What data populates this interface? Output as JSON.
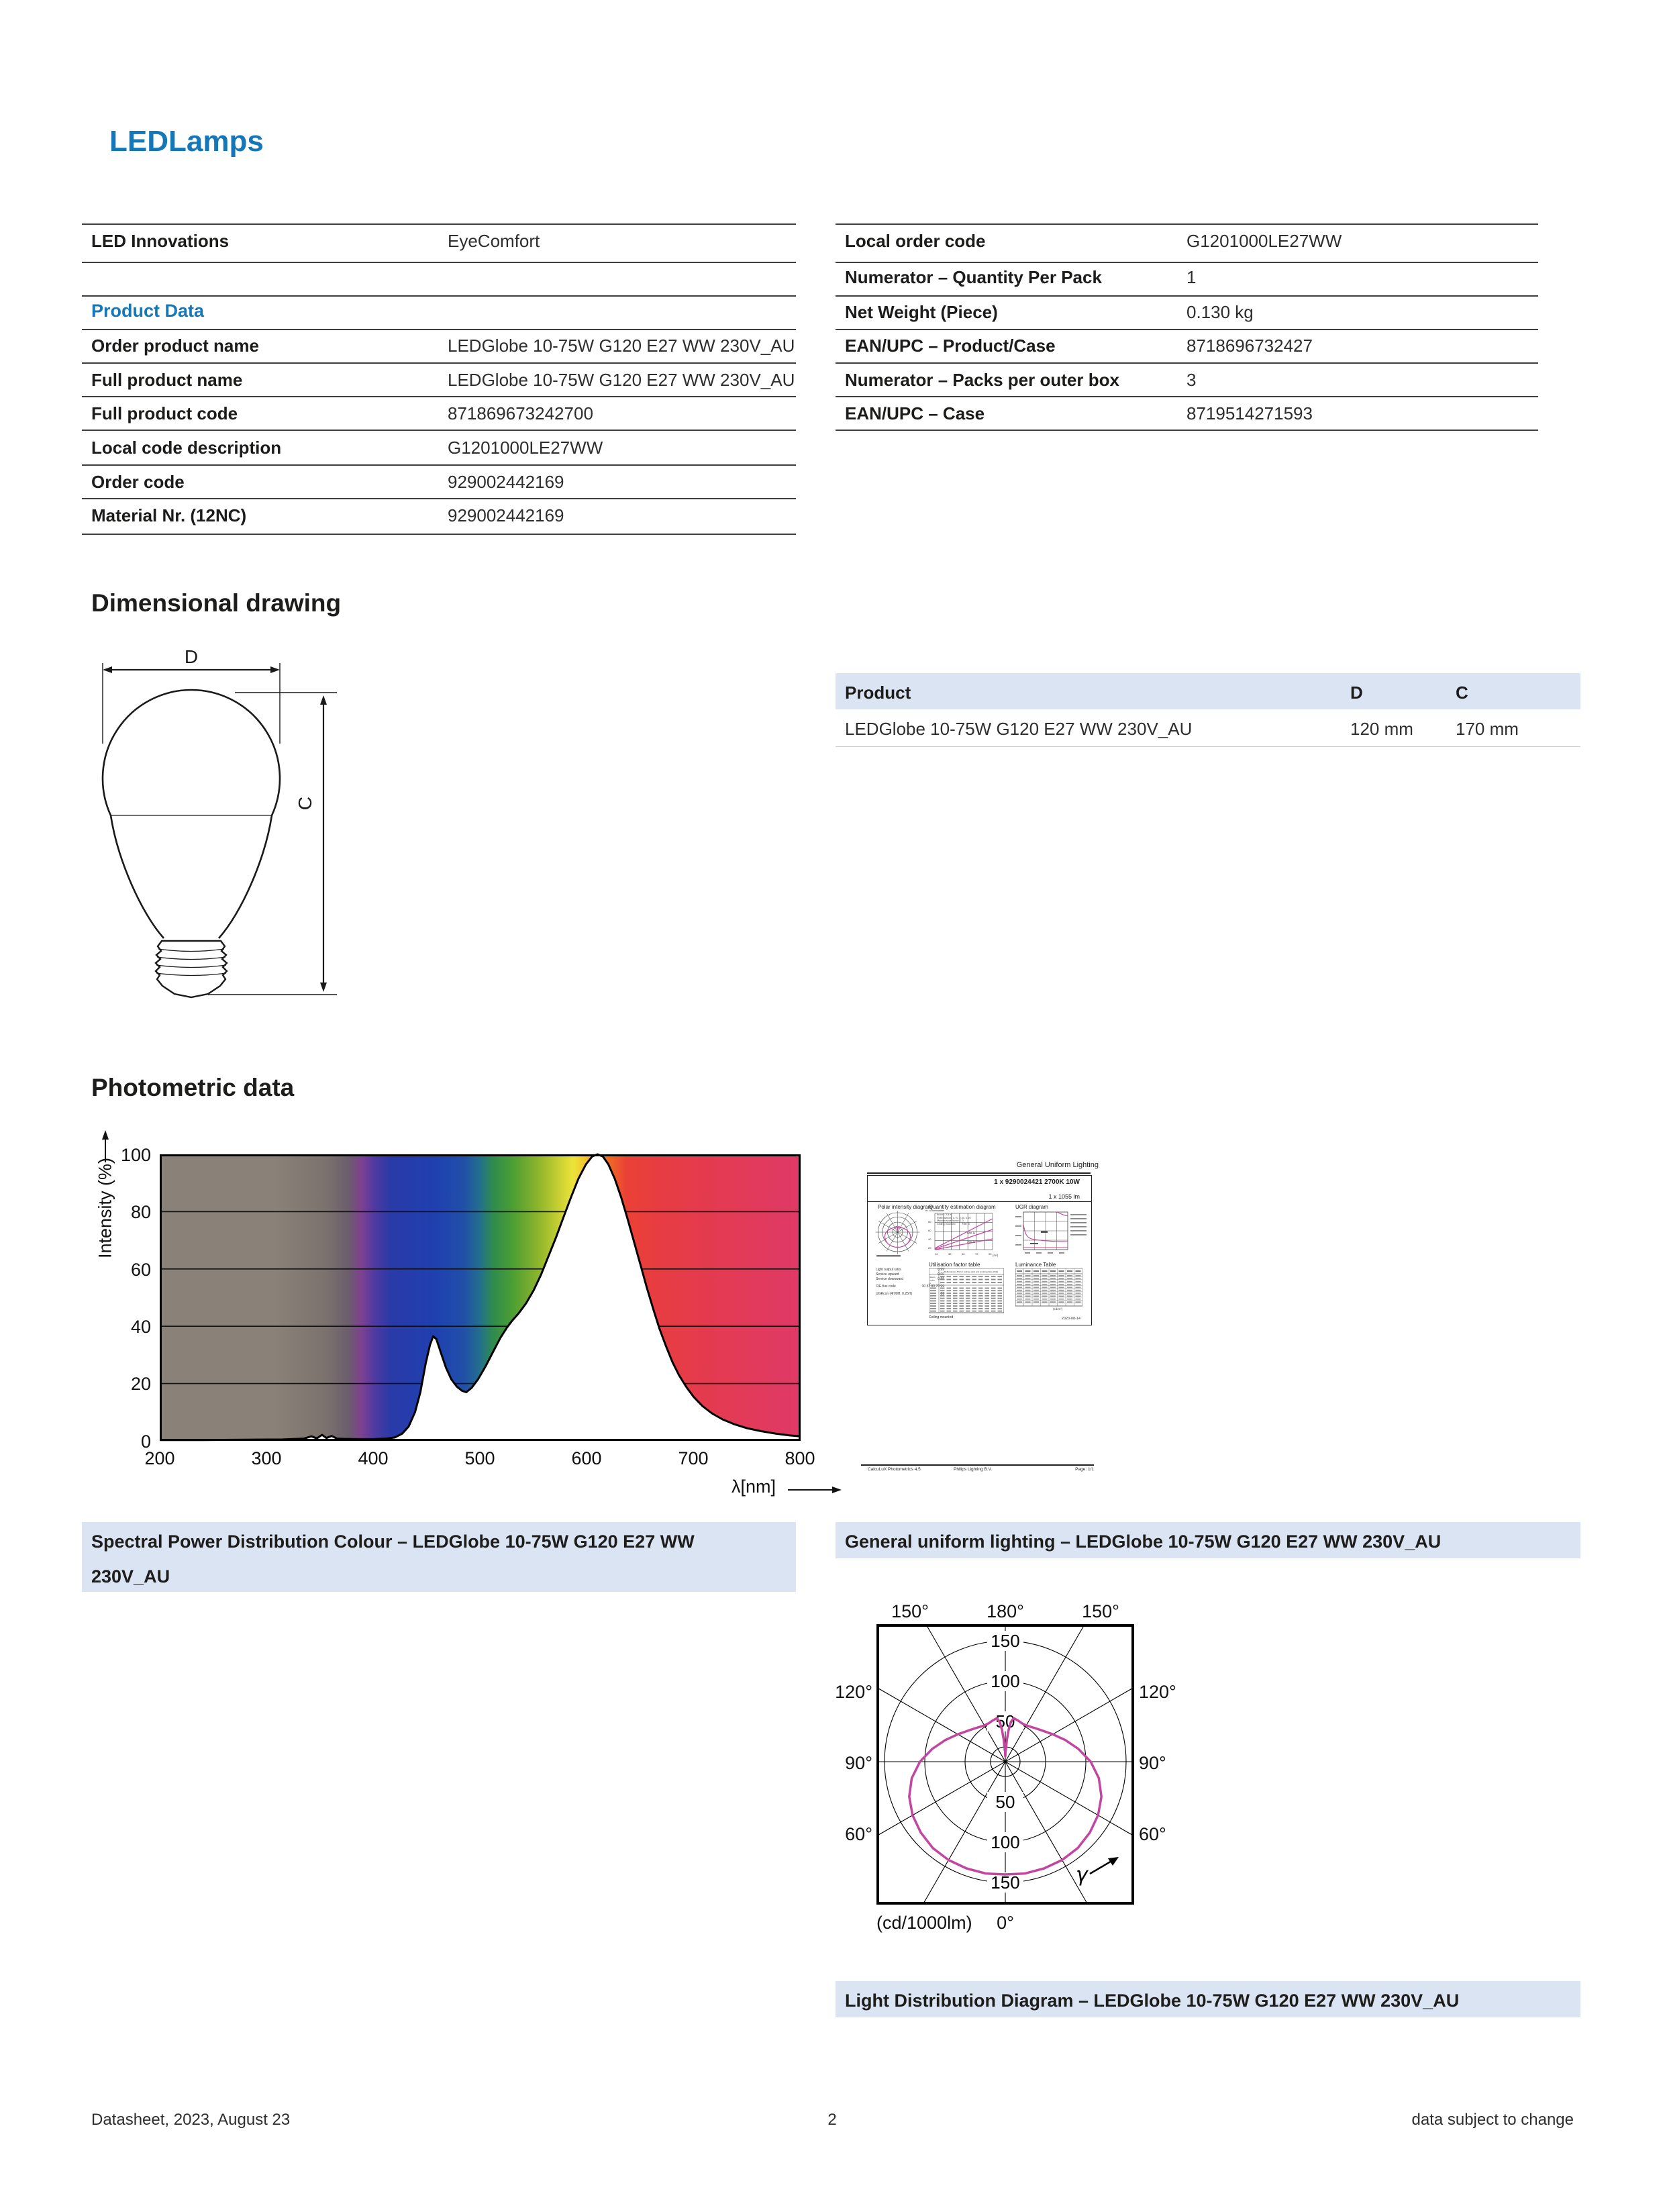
{
  "page": {
    "header_title": "LEDLamps",
    "footer_left": "Datasheet, 2023, August 23",
    "footer_page": "2",
    "footer_right": "data subject to change"
  },
  "colors": {
    "brand_blue": "#1577b8",
    "caption_bg": "#dbe4f2",
    "table_line": "#3d3d3d",
    "polar_curve": "#c2459f"
  },
  "info_left": {
    "section_heading": "Product Data",
    "rows": [
      {
        "label": "LED Innovations",
        "value": "EyeComfort"
      },
      {
        "label": "Order product name",
        "value": "LEDGlobe 10-75W G120 E27 WW 230V_AU"
      },
      {
        "label": "Full product name",
        "value": "LEDGlobe 10-75W G120 E27 WW 230V_AU"
      },
      {
        "label": "Full product code",
        "value": "871869673242700"
      },
      {
        "label": "Local code description",
        "value": "G1201000LE27WW"
      },
      {
        "label": "Order code",
        "value": "929002442169"
      },
      {
        "label": "Material Nr. (12NC)",
        "value": "929002442169"
      }
    ]
  },
  "info_right": {
    "rows": [
      {
        "label": "Local order code",
        "value": "G1201000LE27WW"
      },
      {
        "label": "Numerator – Quantity Per Pack",
        "value": "1"
      },
      {
        "label": "Net Weight (Piece)",
        "value": "0.130 kg"
      },
      {
        "label": "EAN/UPC – Product/Case",
        "value": "8718696732427"
      },
      {
        "label": "Numerator – Packs per outer box",
        "value": "3"
      },
      {
        "label": "EAN/UPC – Case",
        "value": "8719514271593"
      }
    ]
  },
  "dimensional": {
    "heading": "Dimensional drawing",
    "dim_d": "D",
    "dim_c": "C",
    "table": {
      "headers": [
        "Product",
        "D",
        "C"
      ],
      "row": [
        "LEDGlobe 10-75W G120 E27 WW 230V_AU",
        "120 mm",
        "170 mm"
      ]
    }
  },
  "photometric": {
    "heading": "Photometric data",
    "spd_caption_line1": "Spectral Power Distribution Colour – LEDGlobe 10-75W G120 E27 WW",
    "spd_caption_line2": "230V_AU",
    "gul_caption": "General uniform lighting – LEDGlobe 10-75W G120 E27 WW 230V_AU",
    "ldd_caption": "Light Distribution Diagram – LEDGlobe 10-75W G120 E27 WW 230V_AU"
  },
  "thumbnail": {
    "title": "General Uniform Lighting",
    "header": "1 x 9290024421 2700K 10W",
    "lumen": "1 x 1055 lm",
    "sections": {
      "polar": "Polar intensity diagram",
      "quantity": "Quantity estimation diagram",
      "ugr": "UGR diagram",
      "utilisation": "Utilisation factor table",
      "luminance": "Luminance Table"
    },
    "quantity_ylabel": "nr. of luminaires",
    "quantity_xunit": "(m²)",
    "quantity_xticks": [
      "10",
      "30",
      "50",
      "70",
      "90"
    ],
    "quantity_labels": [
      "750 lx",
      "500 lx",
      "300 lx"
    ],
    "quantity_notes": [
      "hroom: 2.8 m",
      "Reflectances: 0.70, 0.50, 0.20",
      "Maintenance factor: 1.0",
      "Ceiling mounted"
    ],
    "stats": [
      [
        "Light output ratio",
        "0.99"
      ],
      [
        "Service upward",
        "0.00"
      ],
      [
        "Service downward",
        "0.99"
      ],
      [
        "CIE flux code",
        "30 57 80 70 99"
      ],
      [
        "UGRcon (4H/8H, 0.25H)",
        "21"
      ]
    ],
    "utilisation_header": "Reflectances (%) for ceiling, walls and working plane (CIE)",
    "utilisation_rowhead": "Room Index k",
    "utilisation_note": "Ceiling mounted",
    "luminance_unit": "(cd/m²)",
    "date": "2020-08-14",
    "footer": [
      "CalcuLuX Photometrics 4.5",
      "Philips Lighting B.V.",
      "Page: 1/1"
    ]
  },
  "chart_data": [
    {
      "id": "spd",
      "type": "area",
      "title": "Spectral Power Distribution Colour",
      "xlabel": "λ[nm]",
      "ylabel": "Intensity (%)",
      "xlim": [
        200,
        800
      ],
      "ylim": [
        0,
        100
      ],
      "xticks": [
        "200",
        "300",
        "400",
        "500",
        "600",
        "700",
        "800"
      ],
      "yticks": [
        "100",
        "80",
        "60",
        "40",
        "20",
        "0"
      ],
      "grid": true,
      "gradient_stops": [
        {
          "o": 0,
          "c": "#8a8178"
        },
        {
          "o": 0.18,
          "c": "#8a8178"
        },
        {
          "o": 0.26,
          "c": "#7b726d"
        },
        {
          "o": 0.295,
          "c": "#6b5d6d"
        },
        {
          "o": 0.315,
          "c": "#7d4191"
        },
        {
          "o": 0.335,
          "c": "#4f3aa1"
        },
        {
          "o": 0.36,
          "c": "#2a3aa8"
        },
        {
          "o": 0.43,
          "c": "#1f40b0"
        },
        {
          "o": 0.475,
          "c": "#2150a8"
        },
        {
          "o": 0.5,
          "c": "#23708c"
        },
        {
          "o": 0.52,
          "c": "#2f8b4e"
        },
        {
          "o": 0.55,
          "c": "#4b9e33"
        },
        {
          "o": 0.59,
          "c": "#8cb42c"
        },
        {
          "o": 0.625,
          "c": "#ccd133"
        },
        {
          "o": 0.645,
          "c": "#ece43a"
        },
        {
          "o": 0.663,
          "c": "#f2c62c"
        },
        {
          "o": 0.678,
          "c": "#f49b1e"
        },
        {
          "o": 0.7,
          "c": "#f16a22"
        },
        {
          "o": 0.728,
          "c": "#ea4136"
        },
        {
          "o": 0.78,
          "c": "#e73c42"
        },
        {
          "o": 0.87,
          "c": "#e43a52"
        },
        {
          "o": 1,
          "c": "#df3a67"
        }
      ],
      "points": [
        [
          200,
          0.3
        ],
        [
          240,
          0.3
        ],
        [
          280,
          0.4
        ],
        [
          315,
          0.5
        ],
        [
          335,
          0.8
        ],
        [
          342,
          1.6
        ],
        [
          347,
          0.9
        ],
        [
          352,
          2.1
        ],
        [
          356,
          1.0
        ],
        [
          361,
          1.7
        ],
        [
          366,
          0.8
        ],
        [
          372,
          0.7
        ],
        [
          385,
          0.6
        ],
        [
          400,
          0.6
        ],
        [
          412,
          0.8
        ],
        [
          420,
          1.2
        ],
        [
          427,
          2.5
        ],
        [
          433,
          5
        ],
        [
          439,
          10
        ],
        [
          444,
          17
        ],
        [
          449,
          27
        ],
        [
          453,
          33.5
        ],
        [
          456,
          36.5
        ],
        [
          459,
          35.5
        ],
        [
          463,
          31
        ],
        [
          468,
          25.5
        ],
        [
          473,
          21.5
        ],
        [
          478,
          19
        ],
        [
          483,
          17.5
        ],
        [
          487,
          17
        ],
        [
          492,
          18.5
        ],
        [
          498,
          21.5
        ],
        [
          505,
          26
        ],
        [
          512,
          31
        ],
        [
          519,
          36
        ],
        [
          525,
          39.5
        ],
        [
          530,
          42
        ],
        [
          536,
          44.5
        ],
        [
          543,
          48
        ],
        [
          550,
          52.5
        ],
        [
          557,
          58
        ],
        [
          564,
          64.5
        ],
        [
          571,
          71
        ],
        [
          578,
          78
        ],
        [
          585,
          85
        ],
        [
          592,
          91.5
        ],
        [
          599,
          96.5
        ],
        [
          605,
          99.3
        ],
        [
          610,
          100
        ],
        [
          615,
          99.2
        ],
        [
          620,
          96.5
        ],
        [
          626,
          91.5
        ],
        [
          632,
          85
        ],
        [
          638,
          77.5
        ],
        [
          644,
          69.5
        ],
        [
          650,
          61.5
        ],
        [
          656,
          53.5
        ],
        [
          662,
          46
        ],
        [
          668,
          39
        ],
        [
          674,
          33
        ],
        [
          680,
          27.5
        ],
        [
          686,
          23
        ],
        [
          693,
          18.8
        ],
        [
          700,
          15.3
        ],
        [
          708,
          12.2
        ],
        [
          717,
          9.6
        ],
        [
          727,
          7.5
        ],
        [
          738,
          5.8
        ],
        [
          750,
          4.4
        ],
        [
          763,
          3.4
        ],
        [
          777,
          2.5
        ],
        [
          790,
          1.9
        ],
        [
          800,
          1.6
        ]
      ]
    },
    {
      "id": "light-distribution-polar",
      "type": "polar-line",
      "title": "Light Distribution Diagram",
      "unit_label": "(cd/1000lm)",
      "gamma_label": "γ",
      "zero_label": "0°",
      "radial_ticks": [
        "50",
        "100",
        "150"
      ],
      "angle_labels_top": [
        "150°",
        "180°",
        "150°"
      ],
      "angle_labels_left": [
        "120°",
        "90°",
        "60°"
      ],
      "angle_labels_right": [
        "120°",
        "90°",
        "60°"
      ],
      "series_cd_per_1000lm": [
        [
          0,
          140
        ],
        [
          10,
          141
        ],
        [
          20,
          141
        ],
        [
          30,
          141
        ],
        [
          40,
          140
        ],
        [
          50,
          137
        ],
        [
          60,
          133
        ],
        [
          70,
          127
        ],
        [
          80,
          118
        ],
        [
          90,
          106
        ],
        [
          100,
          92
        ],
        [
          110,
          79
        ],
        [
          120,
          68
        ],
        [
          130,
          60
        ],
        [
          140,
          55
        ],
        [
          150,
          52
        ],
        [
          157,
          52
        ],
        [
          163,
          53.5
        ],
        [
          169,
          55
        ],
        [
          172,
          50
        ],
        [
          174,
          40
        ],
        [
          176,
          27
        ],
        [
          177.5,
          14
        ],
        [
          178.4,
          21
        ],
        [
          179.2,
          7
        ],
        [
          180,
          15
        ]
      ]
    }
  ]
}
